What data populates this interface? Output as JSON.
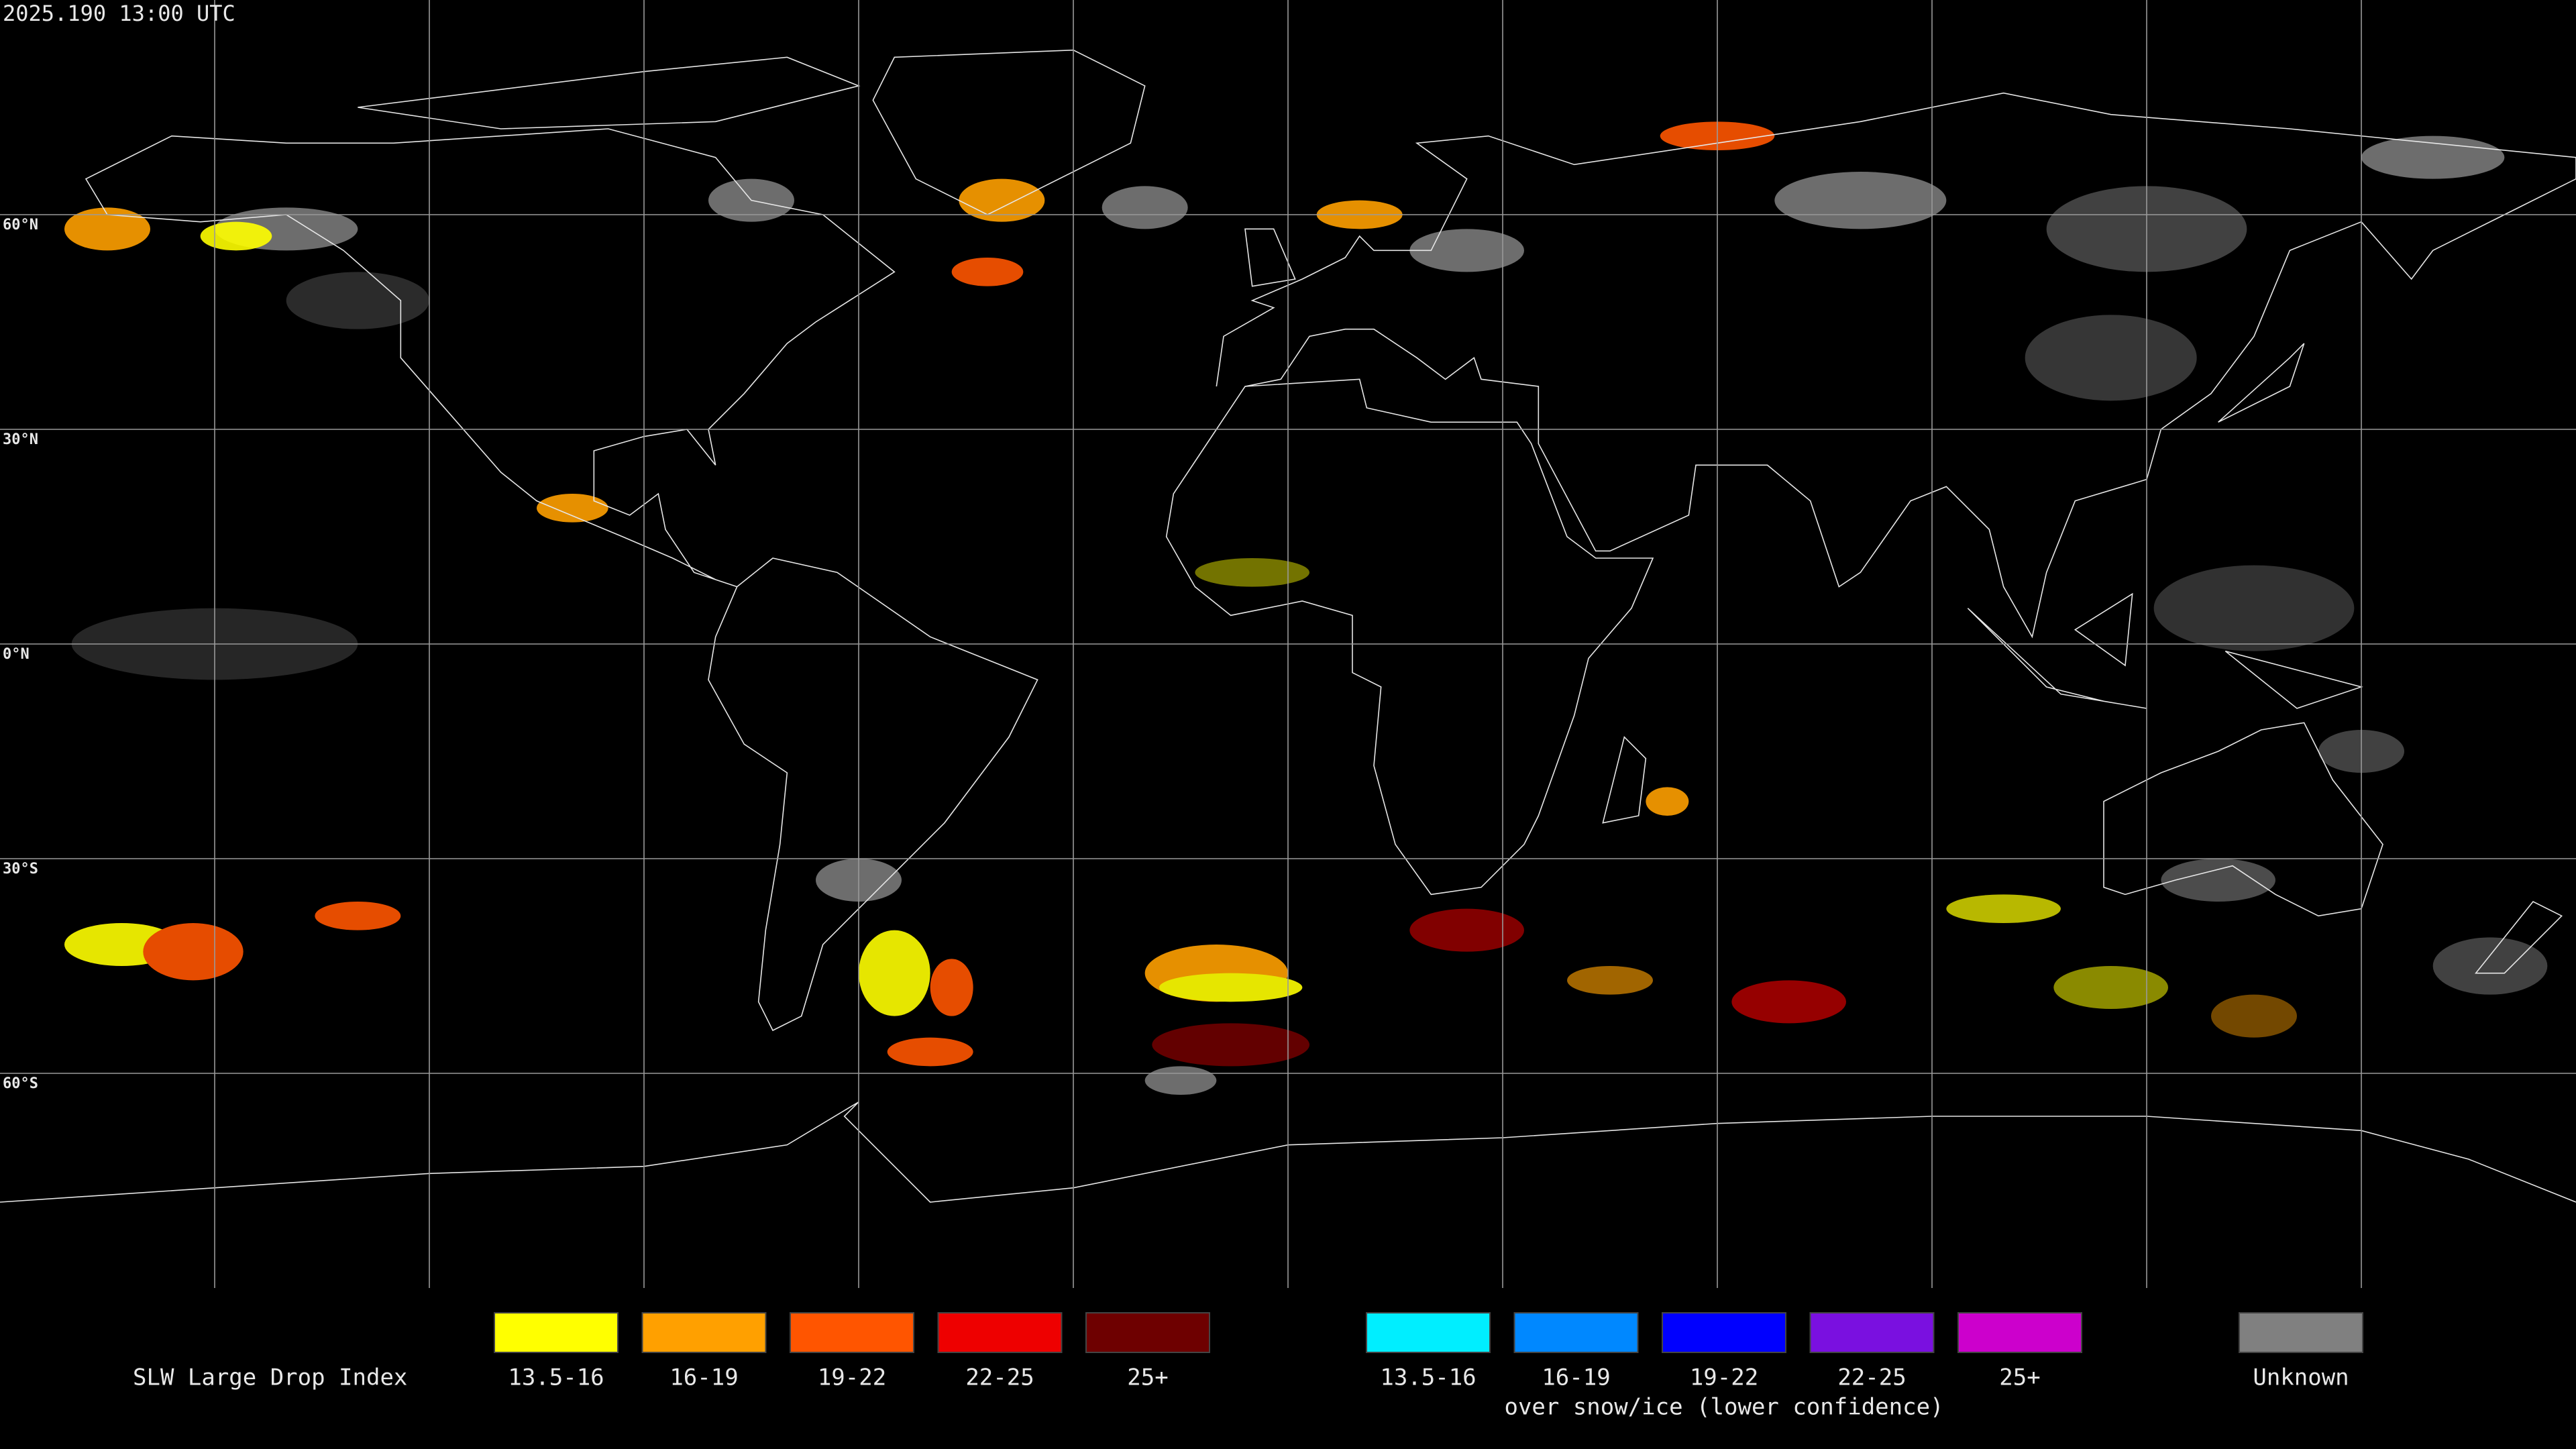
{
  "timestamp": "2025.190 13:00 UTC",
  "latitude_labels": [
    "60°N",
    "30°N",
    "0°N",
    "30°S",
    "60°S"
  ],
  "legend": {
    "title": "SLW Large Drop Index",
    "groups": [
      {
        "items": [
          {
            "label": "13.5-16",
            "color": "#ffff00"
          },
          {
            "label": "16-19",
            "color": "#ffa000"
          },
          {
            "label": "19-22",
            "color": "#ff5500"
          },
          {
            "label": "22-25",
            "color": "#ee0000"
          },
          {
            "label": "25+",
            "color": "#6e0000"
          }
        ]
      },
      {
        "items": [
          {
            "label": "13.5-16",
            "color": "#00eeff"
          },
          {
            "label": "16-19",
            "color": "#0088ff"
          },
          {
            "label": "19-22",
            "color": "#0000ff"
          },
          {
            "label": "22-25",
            "color": "#7a10e0"
          },
          {
            "label": "25+",
            "color": "#cc00cc"
          }
        ],
        "caption": "over snow/ice (lower confidence)"
      },
      {
        "items": [
          {
            "label": "Unknown",
            "color": "#808080"
          }
        ]
      }
    ]
  }
}
